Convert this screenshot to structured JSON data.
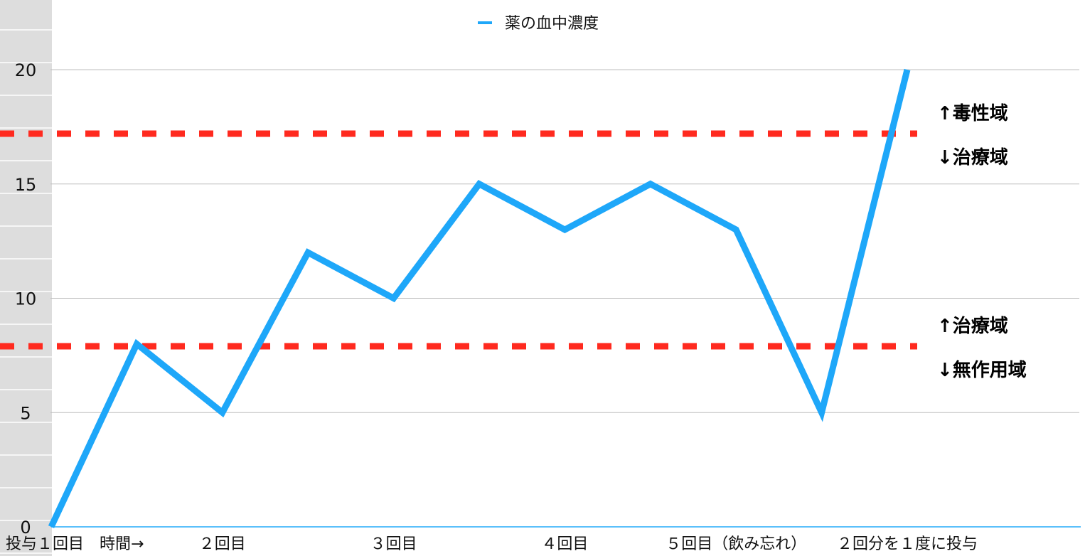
{
  "chart_data": {
    "type": "line",
    "title": "",
    "xlabel": "",
    "ylabel": "",
    "categories": [
      "投与１回目　時間→",
      "",
      "２回目",
      "",
      "３回目",
      "",
      "４回目",
      "",
      "５回目（飲み忘れ）",
      "",
      "２回分を１度に投与"
    ],
    "series": [
      {
        "name": "薬の血中濃度",
        "values": [
          0,
          8,
          5,
          12,
          10,
          15,
          13,
          15,
          13,
          5,
          20
        ],
        "color": "#1EA7F9"
      }
    ],
    "ylim": [
      0,
      20
    ],
    "yticks": [
      "0",
      "5",
      "10",
      "15",
      "20"
    ],
    "grid": true,
    "legend": "top-center",
    "thresholds": [
      {
        "value": 17.2,
        "color": "#FF2A1F",
        "style": "dashed",
        "label_above": "↑毒性域",
        "label_below": "↓治療域"
      },
      {
        "value": 7.9,
        "color": "#FF2A1F",
        "style": "dashed",
        "label_above": "↑治療域",
        "label_below": "↓無作用域"
      }
    ]
  }
}
